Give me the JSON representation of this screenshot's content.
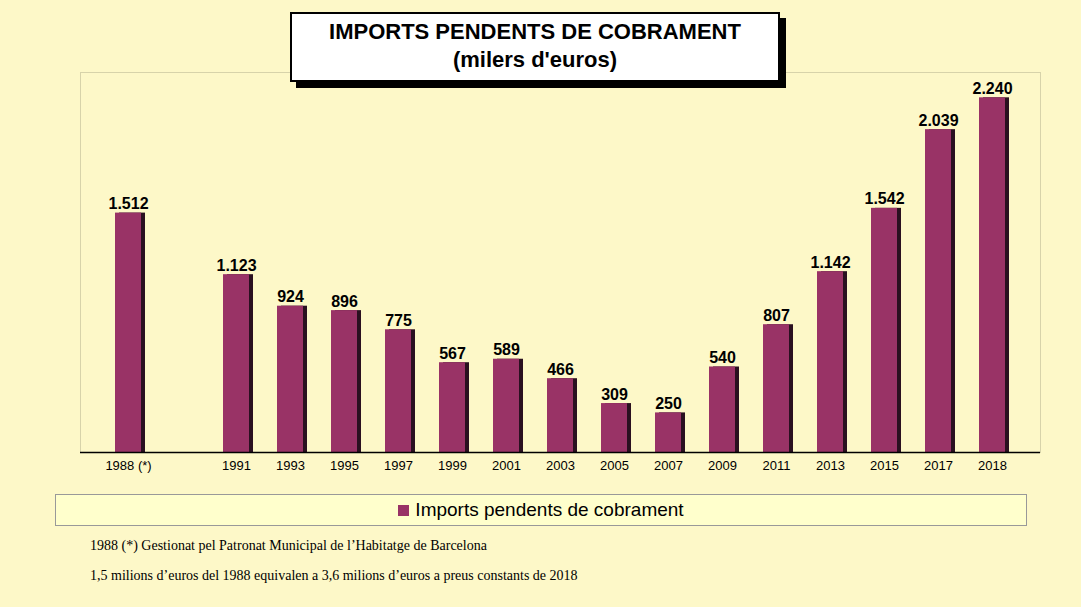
{
  "chart_data": {
    "type": "bar",
    "title": "IMPORTS PENDENTS DE COBRAMENT",
    "subtitle": "(milers d'euros)",
    "categories": [
      "1988 (*)",
      null,
      "1991",
      "1993",
      "1995",
      "1997",
      "1999",
      "2001",
      "2003",
      "2005",
      "2007",
      "2009",
      "2011",
      "2013",
      "2015",
      "2017",
      "2018"
    ],
    "series": [
      {
        "name": "Imports pendents de cobrament",
        "color": "#993366",
        "values": [
          1512,
          null,
          1123,
          924,
          896,
          775,
          567,
          589,
          466,
          309,
          250,
          540,
          807,
          1142,
          1542,
          2039,
          2240
        ],
        "value_labels": [
          "1.512",
          null,
          "1.123",
          "924",
          "896",
          "775",
          "567",
          "589",
          "466",
          "309",
          "250",
          "540",
          "807",
          "1.142",
          "1.542",
          "2.039",
          "2.240"
        ]
      }
    ],
    "ylim": [
      0,
      2400
    ],
    "data_labels": true,
    "tick_labels": "x",
    "legend": "bottom",
    "annotations": [
      "1988 (*) Gestionat pel Patronat Municipal de l’Habitatge de Barcelona",
      "1,5 milions d’euros del 1988 equivalen a 3,6 milions d’euros a preus constants de 2018"
    ]
  }
}
